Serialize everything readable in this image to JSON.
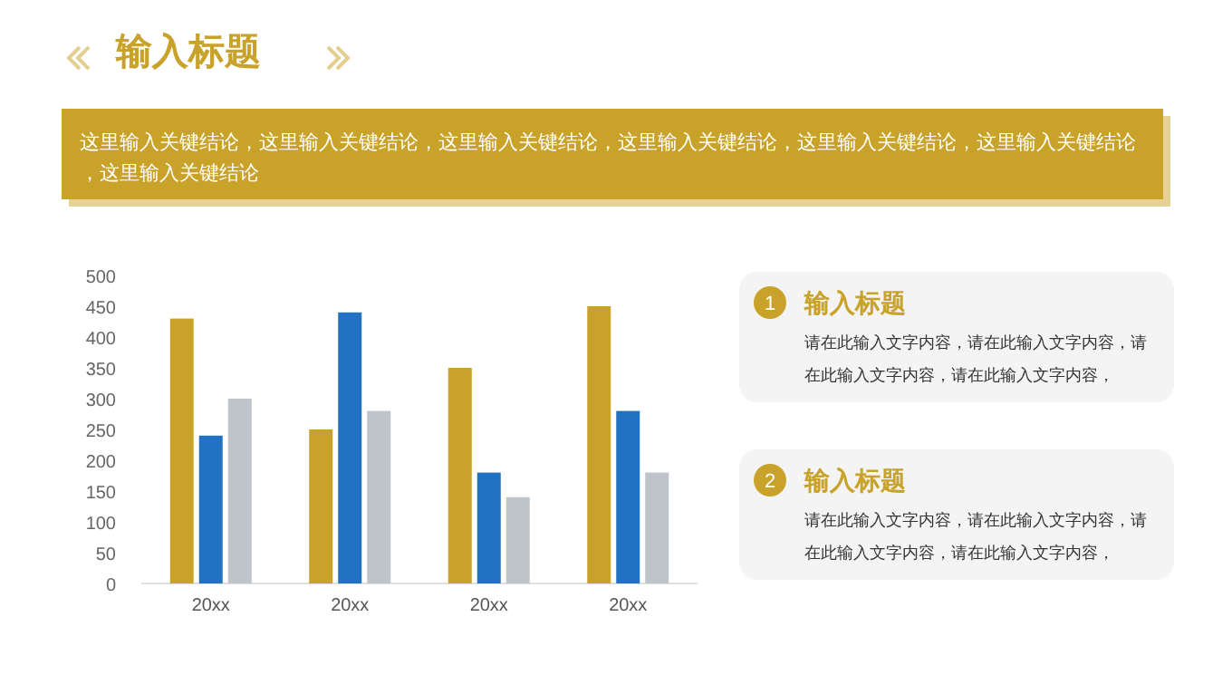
{
  "chart_data": {
    "type": "bar",
    "title": "输入标题",
    "subtitle": "这里输入关键结论，这里输入关键结论，这里输入关键结论，这里输入关键结论，这里输入关键结论，这里输入关键结论，这里输入关键结论",
    "categories": [
      "20xx",
      "20xx",
      "20xx",
      "20xx"
    ],
    "series": [
      {
        "color": "#c9a22a",
        "values": [
          430,
          250,
          350,
          450
        ]
      },
      {
        "color": "#2272c3",
        "values": [
          240,
          440,
          180,
          280
        ]
      },
      {
        "color": "#bfc3ca",
        "values": [
          300,
          280,
          140,
          180
        ]
      }
    ],
    "ylim": [
      0,
      500
    ],
    "yticks": [
      0,
      50,
      100,
      150,
      200,
      250,
      300,
      350,
      400,
      450,
      500
    ],
    "grid": false,
    "annotations": [
      "1",
      "输入标题",
      "请在此输入文字内容，请在此输入文字内容，请在此输入文字内容，请在此输入文字内容，",
      "2",
      "输入标题",
      "请在此输入文字内容，请在此输入文字内容，请在此输入文字内容，请在此输入文字内容，"
    ]
  }
}
